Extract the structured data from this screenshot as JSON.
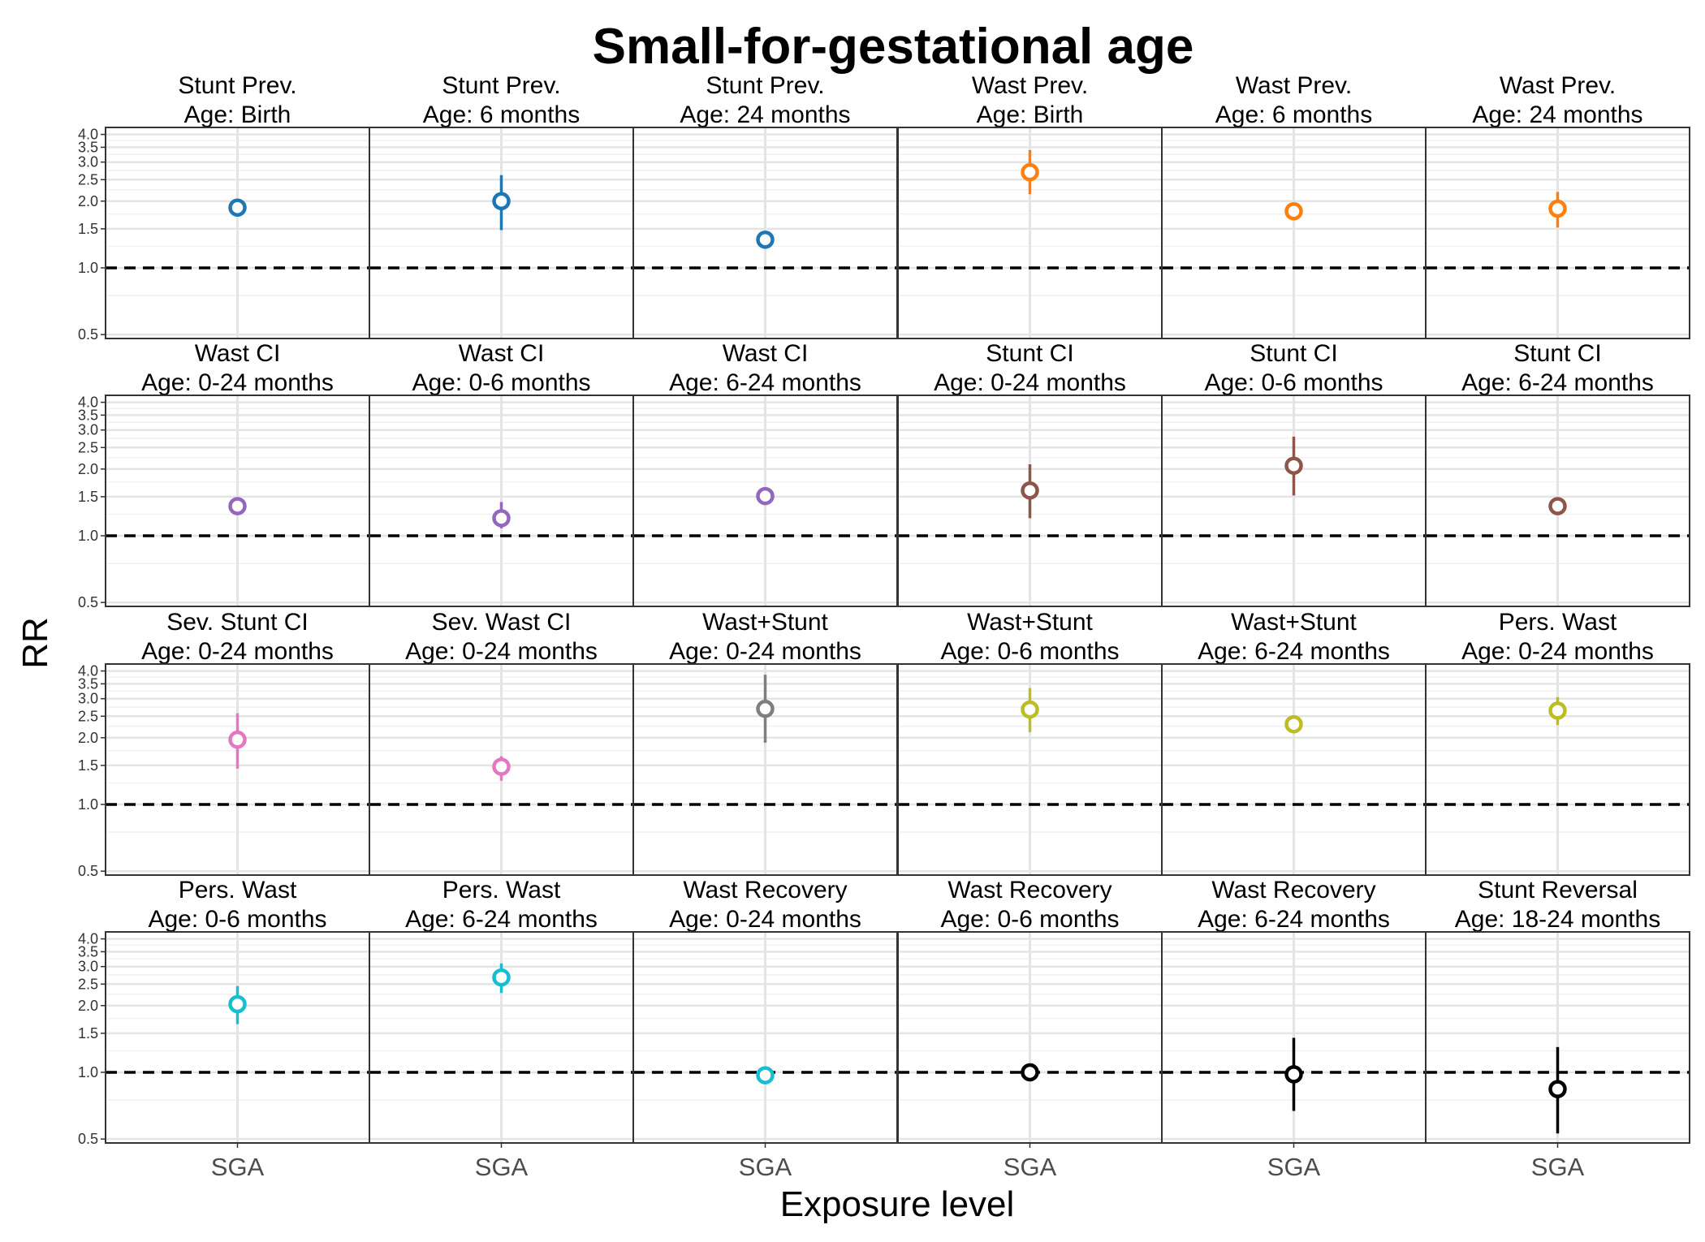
{
  "chart_data": {
    "type": "scatter",
    "title": "Small-for-gestational age",
    "xlabel": "Exposure level",
    "ylabel": "RR",
    "y_scale": "log",
    "ylim": [
      0.48,
      4.3
    ],
    "y_ticks": [
      "0.5",
      "1.0",
      "1.5",
      "2.0",
      "2.5",
      "3.0",
      "3.5",
      "4.0"
    ],
    "reference_line": 1.0,
    "grid": true,
    "panels": [
      {
        "outcome": "Stunt Prev.",
        "age": "Age: Birth",
        "category": "SGA",
        "rr": 1.87,
        "ci": [
          1.8,
          1.94
        ],
        "color": "#1f77b4"
      },
      {
        "outcome": "Stunt Prev.",
        "age": "Age: 6 months",
        "category": "SGA",
        "rr": 2.0,
        "ci": [
          1.48,
          2.62
        ],
        "color": "#1f77b4"
      },
      {
        "outcome": "Stunt Prev.",
        "age": "Age: 24 months",
        "category": "SGA",
        "rr": 1.34,
        "ci": [
          1.28,
          1.4
        ],
        "color": "#1f77b4"
      },
      {
        "outcome": "Wast Prev.",
        "age": "Age: Birth",
        "category": "SGA",
        "rr": 2.7,
        "ci": [
          2.15,
          3.4
        ],
        "color": "#ff7f0e"
      },
      {
        "outcome": "Wast Prev.",
        "age": "Age: 6 months",
        "category": "SGA",
        "rr": 1.8,
        "ci": [
          1.68,
          1.92
        ],
        "color": "#ff7f0e"
      },
      {
        "outcome": "Wast Prev.",
        "age": "Age: 24 months",
        "category": "SGA",
        "rr": 1.85,
        "ci": [
          1.52,
          2.2
        ],
        "color": "#ff7f0e"
      },
      {
        "outcome": "Wast CI",
        "age": "Age: 0-24 months",
        "category": "SGA",
        "rr": 1.36,
        "ci": [
          1.3,
          1.42
        ],
        "color": "#9467bd"
      },
      {
        "outcome": "Wast CI",
        "age": "Age: 0-6 months",
        "category": "SGA",
        "rr": 1.2,
        "ci": [
          1.08,
          1.42
        ],
        "color": "#9467bd"
      },
      {
        "outcome": "Wast CI",
        "age": "Age: 6-24 months",
        "category": "SGA",
        "rr": 1.51,
        "ci": [
          1.38,
          1.65
        ],
        "color": "#9467bd"
      },
      {
        "outcome": "Stunt CI",
        "age": "Age: 0-24 months",
        "category": "SGA",
        "rr": 1.6,
        "ci": [
          1.2,
          2.1
        ],
        "color": "#8c564b"
      },
      {
        "outcome": "Stunt CI",
        "age": "Age: 0-6 months",
        "category": "SGA",
        "rr": 2.07,
        "ci": [
          1.52,
          2.8
        ],
        "color": "#8c564b"
      },
      {
        "outcome": "Stunt CI",
        "age": "Age: 6-24 months",
        "category": "SGA",
        "rr": 1.36,
        "ci": [
          1.29,
          1.43
        ],
        "color": "#8c564b"
      },
      {
        "outcome": "Sev. Stunt CI",
        "age": "Age: 0-24 months",
        "category": "SGA",
        "rr": 1.96,
        "ci": [
          1.45,
          2.58
        ],
        "color": "#e377c2"
      },
      {
        "outcome": "Sev. Wast CI",
        "age": "Age: 0-24 months",
        "category": "SGA",
        "rr": 1.48,
        "ci": [
          1.28,
          1.65
        ],
        "color": "#e377c2"
      },
      {
        "outcome": "Wast+Stunt",
        "age": "Age: 0-24 months",
        "category": "SGA",
        "rr": 2.7,
        "ci": [
          1.9,
          3.85
        ],
        "color": "#7f7f7f"
      },
      {
        "outcome": "Wast+Stunt",
        "age": "Age: 0-6 months",
        "category": "SGA",
        "rr": 2.68,
        "ci": [
          2.12,
          3.35
        ],
        "color": "#bcbd22"
      },
      {
        "outcome": "Wast+Stunt",
        "age": "Age: 6-24 months",
        "category": "SGA",
        "rr": 2.3,
        "ci": [
          2.15,
          2.45
        ],
        "color": "#bcbd22"
      },
      {
        "outcome": "Pers. Wast",
        "age": "Age: 0-24 months",
        "category": "SGA",
        "rr": 2.65,
        "ci": [
          2.28,
          3.05
        ],
        "color": "#bcbd22"
      },
      {
        "outcome": "Pers. Wast",
        "age": "Age: 0-6 months",
        "category": "SGA",
        "rr": 2.03,
        "ci": [
          1.65,
          2.45
        ],
        "color": "#17becf"
      },
      {
        "outcome": "Pers. Wast",
        "age": "Age: 6-24 months",
        "category": "SGA",
        "rr": 2.68,
        "ci": [
          2.28,
          3.1
        ],
        "color": "#17becf"
      },
      {
        "outcome": "Wast Recovery",
        "age": "Age: 0-24 months",
        "category": "SGA",
        "rr": 0.97,
        "ci": [
          0.93,
          1.01
        ],
        "color": "#17becf"
      },
      {
        "outcome": "Wast Recovery",
        "age": "Age: 0-6 months",
        "category": "SGA",
        "rr": 1.0,
        "ci": [
          0.97,
          1.03
        ],
        "color": "#000000"
      },
      {
        "outcome": "Wast Recovery",
        "age": "Age: 6-24 months",
        "category": "SGA",
        "rr": 0.98,
        "ci": [
          0.67,
          1.43
        ],
        "color": "#000000"
      },
      {
        "outcome": "Stunt Reversal",
        "age": "Age: 18-24 months",
        "category": "SGA",
        "rr": 0.84,
        "ci": [
          0.53,
          1.3
        ],
        "color": "#000000"
      }
    ]
  }
}
